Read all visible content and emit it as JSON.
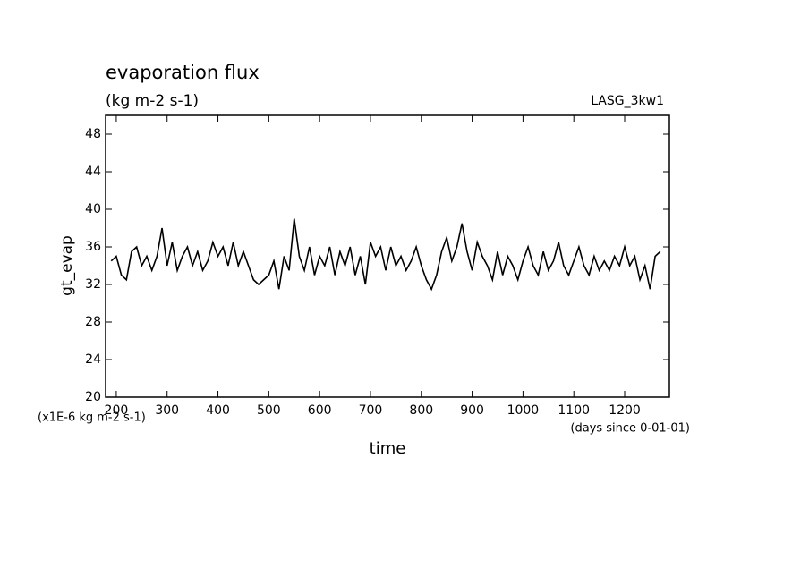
{
  "chart_data": {
    "type": "line",
    "title": "evaporation flux",
    "subtitle": "(kg m-2 s-1)",
    "annotation": "LASG_3kw1",
    "y_label": "gt_evap",
    "y_units": "(x1E-6 kg m-2 s-1)",
    "x_label": "time",
    "x_units": "(days since 0-01-01)",
    "xlim": [
      179,
      1288
    ],
    "ylim": [
      20,
      50
    ],
    "xticks": [
      200,
      300,
      400,
      500,
      600,
      700,
      800,
      900,
      1000,
      1100,
      1200
    ],
    "yticks": [
      20,
      24,
      28,
      32,
      36,
      40,
      44,
      48
    ],
    "x": [
      190,
      200,
      210,
      220,
      230,
      240,
      250,
      260,
      270,
      280,
      290,
      300,
      310,
      320,
      330,
      340,
      350,
      360,
      370,
      380,
      390,
      400,
      410,
      420,
      430,
      440,
      450,
      460,
      470,
      480,
      490,
      500,
      510,
      520,
      530,
      540,
      550,
      560,
      570,
      580,
      590,
      600,
      610,
      620,
      630,
      640,
      650,
      660,
      670,
      680,
      690,
      700,
      710,
      720,
      730,
      740,
      750,
      760,
      770,
      780,
      790,
      800,
      810,
      820,
      830,
      840,
      850,
      860,
      870,
      880,
      890,
      900,
      910,
      920,
      930,
      940,
      950,
      960,
      970,
      980,
      990,
      1000,
      1010,
      1020,
      1030,
      1040,
      1050,
      1060,
      1070,
      1080,
      1090,
      1100,
      1110,
      1120,
      1130,
      1140,
      1150,
      1160,
      1170,
      1180,
      1190,
      1200,
      1210,
      1220,
      1230,
      1240,
      1250,
      1260,
      1270
    ],
    "series": [
      {
        "color": "#000000",
        "values": [
          34.5,
          35,
          33,
          32.5,
          35.5,
          36,
          34,
          35,
          33.5,
          35,
          38,
          34,
          36.5,
          33.5,
          35,
          36,
          34,
          35.5,
          33.5,
          34.5,
          36.5,
          35,
          36,
          34,
          36.5,
          34,
          35.5,
          34,
          32.5,
          32,
          32.5,
          33,
          34.5,
          31.5,
          35,
          33.5,
          39,
          35,
          33.5,
          36,
          33,
          35,
          34,
          36,
          33,
          35.5,
          34,
          36,
          33,
          35,
          32,
          36.5,
          35,
          36,
          33.5,
          36,
          34,
          35,
          33.5,
          34.5,
          36,
          34,
          32.5,
          31.5,
          33,
          35.5,
          37,
          34.5,
          36,
          38.5,
          35.5,
          33.5,
          36.5,
          35,
          34,
          32.5,
          35.5,
          33,
          35,
          34,
          32.5,
          34.5,
          36,
          34,
          33,
          35.5,
          33.5,
          34.5,
          36.5,
          34,
          33,
          34.5,
          36,
          34,
          33,
          35,
          33.5,
          34.5,
          33.5,
          35,
          34,
          36,
          34,
          35,
          32.5,
          34,
          31.5,
          35,
          35.5
        ]
      }
    ]
  }
}
